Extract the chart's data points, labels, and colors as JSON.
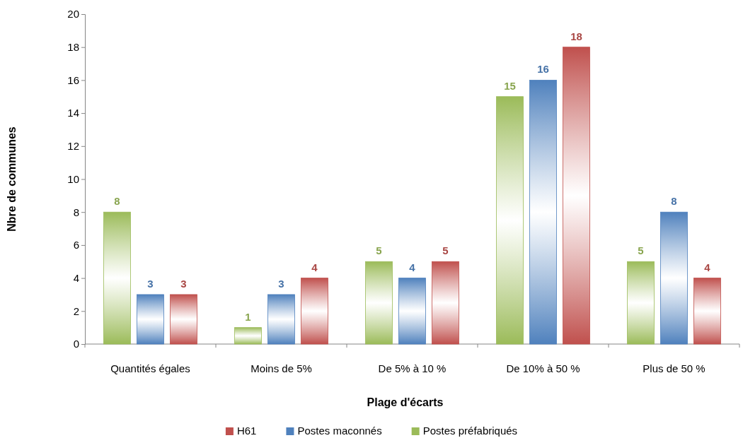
{
  "chart_data": {
    "type": "bar",
    "xlabel": "Plage d'écarts",
    "ylabel": "Nbre de communes",
    "categories": [
      "Quantités égales",
      "Moins de 5%",
      "De 5% à 10 %",
      "De 10% à 50 %",
      "Plus de 50 %"
    ],
    "series": [
      {
        "name": "Postes préfabriqués",
        "color": "#9bbb59",
        "values": [
          8,
          1,
          5,
          15,
          5
        ]
      },
      {
        "name": "Postes maconnés",
        "color": "#4f81bd",
        "values": [
          3,
          3,
          4,
          16,
          8
        ]
      },
      {
        "name": "H61",
        "color": "#c0504d",
        "values": [
          3,
          4,
          5,
          18,
          4
        ]
      }
    ],
    "ylim": [
      0,
      20
    ],
    "yticks": [
      0,
      2,
      4,
      6,
      8,
      10,
      12,
      14,
      16,
      18,
      20
    ],
    "grid": false,
    "legend": "bottom",
    "data_labels": true
  }
}
